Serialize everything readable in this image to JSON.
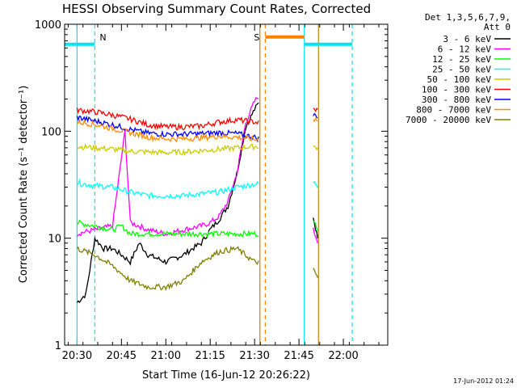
{
  "chart_data": {
    "type": "line",
    "title": "HESSI Observing Summary Count Rates, Corrected",
    "xlabel": "Start Time (16-Jun-12 20:26:22)",
    "ylabel": "Corrected Count Rate (s⁻¹ detector⁻¹)",
    "yscale": "log",
    "ylim": [
      1,
      1000
    ],
    "xlim_minutes": [
      20.43,
      22.25
    ],
    "x_ticks": [
      "20:30",
      "20:45",
      "21:00",
      "21:15",
      "21:30",
      "21:45",
      "22:00"
    ],
    "x_tick_values": [
      20.5,
      20.75,
      21.0,
      21.25,
      21.5,
      21.75,
      22.0
    ],
    "y_ticks": [
      "1",
      "10",
      "100",
      "1000"
    ],
    "y_tick_values": [
      1,
      10,
      100,
      1000
    ],
    "legend_header": [
      "Det 1,3,5,6,7,9,",
      "Att 0"
    ],
    "legend_position": "right",
    "timestamp": "17-Jun-2012 01:24",
    "flags": [
      {
        "label": "N",
        "color": "#00e5ee",
        "start": 20.43,
        "end": 20.6,
        "level": 650,
        "marker": 20.6
      },
      {
        "label": "S",
        "color": "#ff7f00",
        "start": 21.56,
        "end": 21.78,
        "level": 760,
        "marker": 21.56
      },
      {
        "label": "",
        "color": "#00e5ee",
        "start": 21.78,
        "end": 22.05,
        "level": 650,
        "marker": 22.05
      }
    ],
    "markers": [
      {
        "x": 20.5,
        "color": "#00e5ee"
      },
      {
        "x": 21.53,
        "color": "#b8860b"
      },
      {
        "x": 21.78,
        "color": "#00e5ee"
      },
      {
        "x": 21.86,
        "color": "#b8860b"
      }
    ],
    "series": [
      {
        "name": "3 - 6 keV",
        "color": "#000000",
        "points": [
          [
            20.5,
            2.5
          ],
          [
            20.55,
            3
          ],
          [
            20.6,
            10
          ],
          [
            20.65,
            8
          ],
          [
            20.7,
            8
          ],
          [
            20.75,
            7
          ],
          [
            20.8,
            6
          ],
          [
            20.85,
            9
          ],
          [
            20.9,
            7
          ],
          [
            21.0,
            6
          ],
          [
            21.1,
            7
          ],
          [
            21.15,
            8
          ],
          [
            21.2,
            9
          ],
          [
            21.25,
            12
          ],
          [
            21.3,
            15
          ],
          [
            21.35,
            20
          ],
          [
            21.4,
            40
          ],
          [
            21.45,
            110
          ],
          [
            21.5,
            160
          ],
          [
            21.53,
            190
          ]
        ],
        "points2": [
          [
            21.83,
            16
          ],
          [
            21.85,
            11
          ],
          [
            21.86,
            10
          ]
        ]
      },
      {
        "name": "6 - 12 keV",
        "color": "#ff00ff",
        "points": [
          [
            20.5,
            11
          ],
          [
            20.6,
            12
          ],
          [
            20.7,
            13
          ],
          [
            20.77,
            100
          ],
          [
            20.8,
            14
          ],
          [
            20.85,
            13
          ],
          [
            20.9,
            12
          ],
          [
            21.0,
            11
          ],
          [
            21.1,
            12
          ],
          [
            21.2,
            13
          ],
          [
            21.25,
            14
          ],
          [
            21.3,
            16
          ],
          [
            21.35,
            22
          ],
          [
            21.4,
            40
          ],
          [
            21.45,
            120
          ],
          [
            21.5,
            190
          ],
          [
            21.53,
            220
          ]
        ],
        "points2": [
          [
            21.83,
            12
          ],
          [
            21.85,
            10
          ],
          [
            21.86,
            9
          ]
        ]
      },
      {
        "name": "12 - 25 keV",
        "color": "#00ff00",
        "points": [
          [
            20.5,
            14
          ],
          [
            20.6,
            13
          ],
          [
            20.7,
            12
          ],
          [
            20.75,
            13
          ],
          [
            20.8,
            11
          ],
          [
            20.9,
            11
          ],
          [
            21.0,
            11
          ],
          [
            21.1,
            11
          ],
          [
            21.2,
            11
          ],
          [
            21.3,
            11
          ],
          [
            21.4,
            11
          ],
          [
            21.5,
            11
          ],
          [
            21.53,
            11
          ]
        ],
        "points2": [
          [
            21.83,
            14
          ],
          [
            21.85,
            13
          ],
          [
            21.86,
            12
          ]
        ]
      },
      {
        "name": "25 - 50 keV",
        "color": "#00ffff",
        "points": [
          [
            20.5,
            33
          ],
          [
            20.6,
            31
          ],
          [
            20.7,
            30
          ],
          [
            20.8,
            27
          ],
          [
            20.9,
            25
          ],
          [
            21.0,
            25
          ],
          [
            21.1,
            25
          ],
          [
            21.2,
            26
          ],
          [
            21.3,
            27
          ],
          [
            21.4,
            30
          ],
          [
            21.5,
            32
          ],
          [
            21.53,
            32
          ]
        ],
        "points2": [
          [
            21.83,
            33
          ],
          [
            21.85,
            32
          ],
          [
            21.86,
            30
          ]
        ]
      },
      {
        "name": "50 - 100 keV",
        "color": "#cccc00",
        "points": [
          [
            20.5,
            72
          ],
          [
            20.6,
            70
          ],
          [
            20.7,
            68
          ],
          [
            20.8,
            65
          ],
          [
            20.9,
            64
          ],
          [
            21.0,
            63
          ],
          [
            21.1,
            64
          ],
          [
            21.2,
            66
          ],
          [
            21.3,
            68
          ],
          [
            21.4,
            70
          ],
          [
            21.5,
            72
          ],
          [
            21.53,
            72
          ]
        ],
        "points2": [
          [
            21.83,
            72
          ],
          [
            21.85,
            70
          ],
          [
            21.86,
            68
          ]
        ]
      },
      {
        "name": "100 - 300 keV",
        "color": "#ff0000",
        "points": [
          [
            20.5,
            158
          ],
          [
            20.6,
            152
          ],
          [
            20.7,
            142
          ],
          [
            20.8,
            130
          ],
          [
            20.9,
            115
          ],
          [
            21.0,
            110
          ],
          [
            21.1,
            110
          ],
          [
            21.2,
            112
          ],
          [
            21.3,
            122
          ],
          [
            21.4,
            128
          ],
          [
            21.5,
            122
          ],
          [
            21.53,
            120
          ]
        ],
        "points2": [
          [
            21.83,
            160
          ],
          [
            21.85,
            158
          ],
          [
            21.86,
            155
          ]
        ]
      },
      {
        "name": "300 - 800 keV",
        "color": "#0000ff",
        "points": [
          [
            20.5,
            135
          ],
          [
            20.6,
            125
          ],
          [
            20.7,
            115
          ],
          [
            20.8,
            104
          ],
          [
            20.9,
            96
          ],
          [
            21.0,
            94
          ],
          [
            21.1,
            94
          ],
          [
            21.2,
            95
          ],
          [
            21.3,
            97
          ],
          [
            21.4,
            95
          ],
          [
            21.5,
            88
          ],
          [
            21.53,
            85
          ]
        ],
        "points2": [
          [
            21.83,
            142
          ],
          [
            21.85,
            140
          ],
          [
            21.86,
            135
          ]
        ]
      },
      {
        "name": "800 - 7000 keV",
        "color": "#ff8c00",
        "points": [
          [
            20.5,
            122
          ],
          [
            20.6,
            116
          ],
          [
            20.7,
            106
          ],
          [
            20.8,
            97
          ],
          [
            20.9,
            88
          ],
          [
            21.0,
            85
          ],
          [
            21.1,
            85
          ],
          [
            21.2,
            87
          ],
          [
            21.3,
            90
          ],
          [
            21.4,
            88
          ],
          [
            21.5,
            84
          ],
          [
            21.53,
            82
          ]
        ],
        "points2": [
          [
            21.83,
            130
          ],
          [
            21.85,
            128
          ],
          [
            21.86,
            122
          ]
        ]
      },
      {
        "name": "7000 - 20000 keV",
        "color": "#808000",
        "points": [
          [
            20.5,
            8
          ],
          [
            20.6,
            7
          ],
          [
            20.7,
            5.5
          ],
          [
            20.8,
            4
          ],
          [
            20.9,
            3.5
          ],
          [
            21.0,
            3.5
          ],
          [
            21.1,
            4
          ],
          [
            21.2,
            6
          ],
          [
            21.3,
            7.5
          ],
          [
            21.4,
            8
          ],
          [
            21.5,
            6
          ],
          [
            21.53,
            6
          ]
        ],
        "points2": [
          [
            21.83,
            5
          ],
          [
            21.85,
            4.5
          ],
          [
            21.86,
            4
          ]
        ]
      }
    ]
  }
}
